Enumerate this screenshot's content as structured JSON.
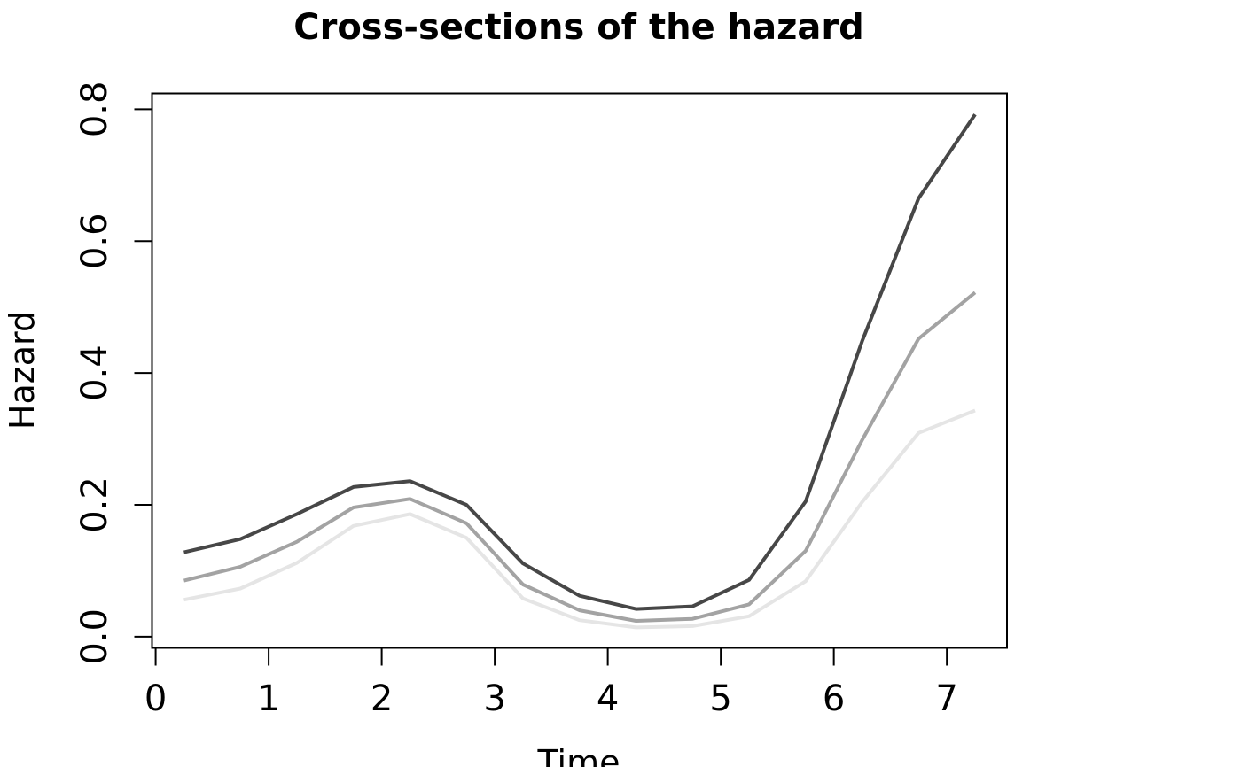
{
  "chart_data": {
    "type": "line",
    "title": "Cross-sections of the hazard",
    "xlabel": "Time",
    "ylabel": "Hazard",
    "grid": false,
    "legend": "none",
    "xlim": [
      -0.032,
      7.532
    ],
    "ylim": [
      -0.017,
      0.824
    ],
    "x_ticks": [
      {
        "value": 0,
        "label": "0"
      },
      {
        "value": 1,
        "label": "1"
      },
      {
        "value": 2,
        "label": "2"
      },
      {
        "value": 3,
        "label": "3"
      },
      {
        "value": 4,
        "label": "4"
      },
      {
        "value": 5,
        "label": "5"
      },
      {
        "value": 6,
        "label": "6"
      },
      {
        "value": 7,
        "label": "7"
      }
    ],
    "y_ticks": [
      {
        "value": 0.0,
        "label": "0.0"
      },
      {
        "value": 0.2,
        "label": "0.2"
      },
      {
        "value": 0.4,
        "label": "0.4"
      },
      {
        "value": 0.6,
        "label": "0.6"
      },
      {
        "value": 0.8,
        "label": "0.8"
      }
    ],
    "x": [
      0.25,
      0.75,
      1.25,
      1.75,
      2.25,
      2.75,
      3.25,
      3.75,
      4.25,
      4.75,
      5.25,
      5.75,
      6.25,
      6.75,
      7.25
    ],
    "series": [
      {
        "name": "hazard-cross-section-light",
        "color": "#e5e5e5",
        "values": [
          0.056,
          0.073,
          0.112,
          0.168,
          0.186,
          0.15,
          0.058,
          0.025,
          0.014,
          0.016,
          0.031,
          0.084,
          0.204,
          0.309,
          0.343
        ]
      },
      {
        "name": "hazard-cross-section-medium",
        "color": "#a3a3a3",
        "values": [
          0.085,
          0.106,
          0.144,
          0.196,
          0.209,
          0.172,
          0.079,
          0.04,
          0.024,
          0.027,
          0.049,
          0.13,
          0.298,
          0.452,
          0.522
        ]
      },
      {
        "name": "hazard-cross-section-dark",
        "color": "#474747",
        "values": [
          0.128,
          0.148,
          0.186,
          0.227,
          0.236,
          0.2,
          0.111,
          0.062,
          0.042,
          0.046,
          0.086,
          0.205,
          0.448,
          0.665,
          0.792
        ]
      }
    ]
  }
}
